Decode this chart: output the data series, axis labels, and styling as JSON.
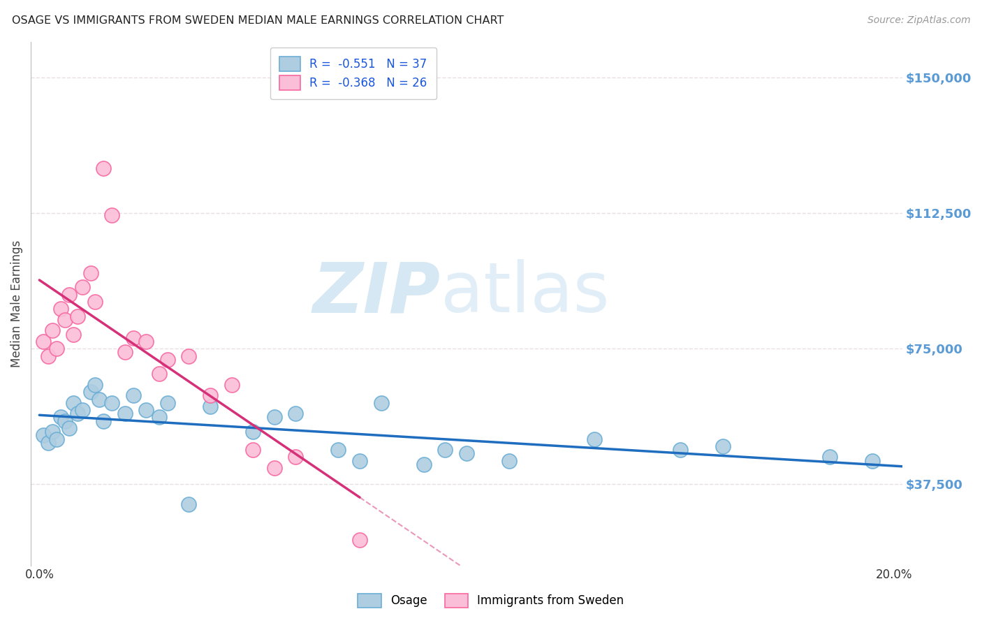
{
  "title": "OSAGE VS IMMIGRANTS FROM SWEDEN MEDIAN MALE EARNINGS CORRELATION CHART",
  "source": "Source: ZipAtlas.com",
  "ylabel": "Median Male Earnings",
  "ytick_labels": [
    "$37,500",
    "$75,000",
    "$112,500",
    "$150,000"
  ],
  "ytick_values": [
    37500,
    75000,
    112500,
    150000
  ],
  "ymin": 15000,
  "ymax": 160000,
  "xmin": -0.002,
  "xmax": 0.202,
  "osage_color": "#6baed6",
  "osage_color_fill": "#aecde0",
  "sweden_color": "#f768a1",
  "sweden_color_fill": "#fbbed8",
  "osage_R": "-0.551",
  "osage_N": "37",
  "sweden_R": "-0.368",
  "sweden_N": "26",
  "osage_x": [
    0.001,
    0.002,
    0.003,
    0.004,
    0.005,
    0.006,
    0.007,
    0.008,
    0.009,
    0.01,
    0.012,
    0.013,
    0.014,
    0.015,
    0.017,
    0.02,
    0.022,
    0.025,
    0.028,
    0.03,
    0.035,
    0.04,
    0.05,
    0.055,
    0.06,
    0.07,
    0.075,
    0.08,
    0.09,
    0.095,
    0.1,
    0.11,
    0.13,
    0.15,
    0.16,
    0.185,
    0.195
  ],
  "osage_y": [
    51000,
    49000,
    52000,
    50000,
    56000,
    55000,
    53000,
    60000,
    57000,
    58000,
    63000,
    65000,
    61000,
    55000,
    60000,
    57000,
    62000,
    58000,
    56000,
    60000,
    32000,
    59000,
    52000,
    56000,
    57000,
    47000,
    44000,
    60000,
    43000,
    47000,
    46000,
    44000,
    50000,
    47000,
    48000,
    45000,
    44000
  ],
  "sweden_x": [
    0.001,
    0.002,
    0.003,
    0.004,
    0.005,
    0.006,
    0.007,
    0.008,
    0.009,
    0.01,
    0.012,
    0.013,
    0.015,
    0.017,
    0.02,
    0.022,
    0.025,
    0.028,
    0.03,
    0.035,
    0.04,
    0.045,
    0.05,
    0.055,
    0.06,
    0.075
  ],
  "sweden_y": [
    77000,
    73000,
    80000,
    75000,
    86000,
    83000,
    90000,
    79000,
    84000,
    92000,
    96000,
    88000,
    125000,
    112000,
    74000,
    78000,
    77000,
    68000,
    72000,
    73000,
    62000,
    65000,
    47000,
    42000,
    45000,
    22000
  ],
  "background_color": "#ffffff",
  "grid_color": "#e8e0e0",
  "title_color": "#222222",
  "right_label_color": "#5b9bd5",
  "osage_line_color": "#1f6dbf",
  "sweden_line_color": "#d63178",
  "watermark_zip_color": "#c5dff0",
  "watermark_atlas_color": "#c5dff0"
}
